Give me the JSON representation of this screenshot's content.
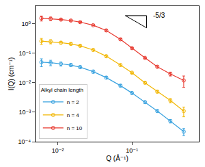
{
  "chart_data": {
    "type": "scatter",
    "x_label": "Q (Å⁻¹)",
    "y_label": "I(Q) (cm⁻¹)",
    "log": true,
    "grid": false,
    "legend": "lower left",
    "legend_title": "Alkyl chain length",
    "annotation": "-5/3",
    "xlim": [
      0.005,
      0.8
    ],
    "ylim": [
      0.0001,
      4
    ],
    "xticks": [
      {
        "value": 0.01,
        "label": "10⁻²"
      },
      {
        "value": 0.1,
        "label": "10⁻¹"
      }
    ],
    "yticks": [
      {
        "value": 0.0001,
        "label": "10⁻⁴"
      },
      {
        "value": 0.001,
        "label": "10⁻³"
      },
      {
        "value": 0.01,
        "label": "10⁻²"
      },
      {
        "value": 0.1,
        "label": "10⁻¹"
      },
      {
        "value": 1,
        "label": "10⁰"
      }
    ],
    "x": [
      0.006,
      0.008,
      0.011,
      0.015,
      0.02,
      0.03,
      0.045,
      0.07,
      0.1,
      0.15,
      0.22,
      0.33,
      0.5
    ],
    "series": [
      {
        "name": "n = 2",
        "color": "#3aa3e0",
        "marker": "circle-open",
        "line_style": "solid",
        "values": [
          0.05,
          0.048,
          0.044,
          0.04,
          0.034,
          0.024,
          0.015,
          0.008,
          0.0045,
          0.0022,
          0.0011,
          0.0005,
          0.00022
        ],
        "errors": [
          0.015,
          0.01,
          0.007,
          0.005,
          0.004,
          0.003,
          0.0015,
          0.0008,
          0.0004,
          0.0002,
          0.0001,
          7e-05,
          6e-05
        ]
      },
      {
        "name": "n = 4",
        "color": "#f2b705",
        "marker": "circle-open",
        "line_style": "solid",
        "values": [
          0.26,
          0.25,
          0.23,
          0.21,
          0.18,
          0.13,
          0.08,
          0.04,
          0.022,
          0.01,
          0.005,
          0.0025,
          0.0011
        ],
        "errors": [
          0.06,
          0.04,
          0.025,
          0.02,
          0.015,
          0.01,
          0.006,
          0.003,
          0.0015,
          0.0008,
          0.0005,
          0.0004,
          0.0004
        ]
      },
      {
        "name": "n = 10",
        "color": "#e8382e",
        "marker": "circle-open",
        "line_style": "solid",
        "values": [
          1.55,
          1.5,
          1.4,
          1.3,
          1.15,
          0.9,
          0.6,
          0.3,
          0.15,
          0.07,
          0.035,
          0.02,
          0.012
        ],
        "errors": [
          0.3,
          0.2,
          0.12,
          0.08,
          0.06,
          0.04,
          0.03,
          0.015,
          0.008,
          0.004,
          0.003,
          0.003,
          0.005
        ]
      }
    ]
  }
}
